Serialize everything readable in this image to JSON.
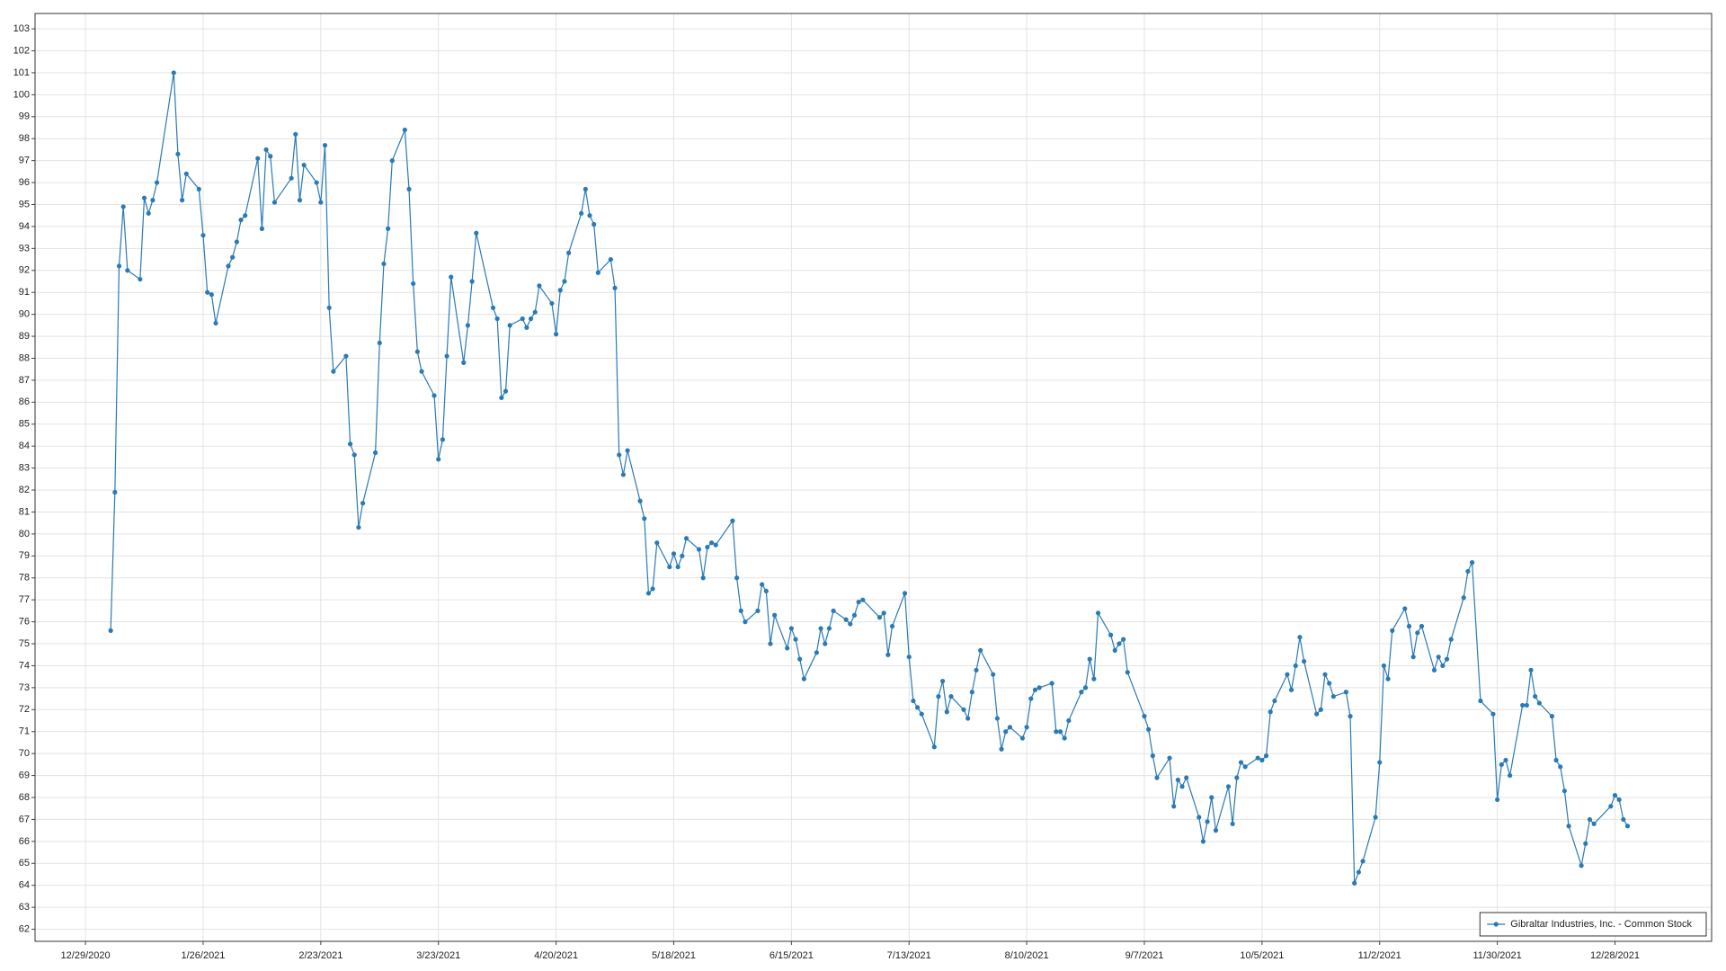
{
  "chart_data": {
    "type": "line",
    "series": [
      {
        "name": "Gibraltar Industries, Inc. - Common Stock",
        "color": "#2a7ab5",
        "values": [
          75.6,
          81.9,
          92.2,
          94.9,
          92.0,
          91.6,
          95.3,
          94.6,
          95.2,
          96.0,
          101.0,
          97.3,
          95.2,
          96.4,
          95.7,
          93.6,
          91.0,
          90.9,
          89.6,
          92.2,
          92.6,
          93.3,
          94.3,
          94.5,
          97.1,
          93.9,
          97.5,
          97.2,
          95.1,
          96.2,
          98.2,
          95.2,
          96.8,
          96.0,
          95.1,
          97.7,
          90.3,
          87.4,
          88.1,
          84.1,
          83.6,
          80.3,
          81.4,
          83.7,
          88.7,
          92.3,
          93.9,
          97.0,
          98.4,
          95.7,
          91.4,
          88.3,
          87.4,
          86.3,
          83.4,
          84.3,
          88.1,
          91.7,
          87.8,
          89.5,
          91.5,
          93.7,
          90.3,
          89.8,
          86.2,
          86.5,
          89.5,
          89.8,
          89.4,
          89.8,
          90.1,
          91.3,
          90.5,
          89.1,
          91.1,
          91.5,
          92.8,
          94.6,
          95.7,
          94.5,
          94.1,
          91.9,
          92.5,
          91.2,
          83.6,
          82.7,
          83.8,
          81.5,
          80.7,
          77.3,
          77.5,
          79.6,
          78.5,
          79.1,
          78.5,
          79.0,
          79.8,
          79.3,
          78.0,
          79.4,
          79.6,
          79.5,
          80.6,
          78.0,
          76.5,
          76.0,
          76.5,
          77.7,
          77.4,
          75.0,
          76.3,
          74.8,
          75.7,
          75.2,
          74.3,
          73.4,
          74.6,
          75.7,
          75.0,
          75.7,
          76.5,
          76.1,
          75.9,
          76.3,
          76.9,
          77.0,
          76.2,
          76.4,
          74.5,
          75.8,
          77.3,
          74.4,
          72.4,
          72.1,
          71.8,
          70.3,
          72.6,
          73.3,
          71.9,
          72.6,
          72.0,
          71.6,
          72.8,
          73.8,
          74.7,
          73.6,
          71.6,
          70.2,
          71.0,
          71.2,
          70.7,
          71.2,
          72.5,
          72.9,
          73.0,
          73.2,
          71.0,
          71.0,
          70.7,
          71.5,
          72.8,
          73.0,
          74.3,
          73.4,
          76.4,
          75.4,
          74.7,
          75.0,
          75.2,
          73.7,
          71.7,
          71.1,
          69.9,
          68.9,
          69.8,
          67.6,
          68.8,
          68.5,
          68.9,
          67.1,
          66.0,
          66.9,
          68.0,
          66.5,
          68.5,
          66.8,
          68.9,
          69.6,
          69.4,
          69.8,
          69.7,
          69.9,
          71.9,
          72.4,
          73.6,
          72.9,
          74.0,
          75.3,
          74.2,
          71.8,
          72.0,
          73.6,
          73.2,
          72.6,
          72.8,
          71.7,
          64.1,
          64.6,
          65.1,
          67.1,
          69.6,
          74.0,
          73.4,
          75.6,
          76.6,
          75.8,
          74.4,
          75.5,
          75.8,
          73.8,
          74.4,
          74.0,
          74.3,
          75.2,
          77.1,
          78.3,
          78.7,
          72.4,
          71.8,
          67.9,
          69.5,
          69.7,
          69.0,
          72.2,
          72.2,
          73.8,
          72.6,
          72.3,
          71.7,
          69.7,
          69.4,
          68.3,
          66.7,
          64.9,
          65.9,
          67.0,
          66.8,
          67.6,
          68.1,
          67.9,
          67.0,
          66.7
        ]
      }
    ],
    "x": [
      "1/4/2021",
      "1/5/2021",
      "1/6/2021",
      "1/7/2021",
      "1/8/2021",
      "1/11/2021",
      "1/12/2021",
      "1/13/2021",
      "1/14/2021",
      "1/15/2021",
      "1/19/2021",
      "1/20/2021",
      "1/21/2021",
      "1/22/2021",
      "1/25/2021",
      "1/26/2021",
      "1/27/2021",
      "1/28/2021",
      "1/29/2021",
      "2/1/2021",
      "2/2/2021",
      "2/3/2021",
      "2/4/2021",
      "2/5/2021",
      "2/8/2021",
      "2/9/2021",
      "2/10/2021",
      "2/11/2021",
      "2/12/2021",
      "2/16/2021",
      "2/17/2021",
      "2/18/2021",
      "2/19/2021",
      "2/22/2021",
      "2/23/2021",
      "2/24/2021",
      "2/25/2021",
      "2/26/2021",
      "3/1/2021",
      "3/2/2021",
      "3/3/2021",
      "3/4/2021",
      "3/5/2021",
      "3/8/2021",
      "3/9/2021",
      "3/10/2021",
      "3/11/2021",
      "3/12/2021",
      "3/15/2021",
      "3/16/2021",
      "3/17/2021",
      "3/18/2021",
      "3/19/2021",
      "3/22/2021",
      "3/23/2021",
      "3/24/2021",
      "3/25/2021",
      "3/26/2021",
      "3/29/2021",
      "3/30/2021",
      "3/31/2021",
      "4/1/2021",
      "4/5/2021",
      "4/6/2021",
      "4/7/2021",
      "4/8/2021",
      "4/9/2021",
      "4/12/2021",
      "4/13/2021",
      "4/14/2021",
      "4/15/2021",
      "4/16/2021",
      "4/19/2021",
      "4/20/2021",
      "4/21/2021",
      "4/22/2021",
      "4/23/2021",
      "4/26/2021",
      "4/27/2021",
      "4/28/2021",
      "4/29/2021",
      "4/30/2021",
      "5/3/2021",
      "5/4/2021",
      "5/5/2021",
      "5/6/2021",
      "5/7/2021",
      "5/10/2021",
      "5/11/2021",
      "5/12/2021",
      "5/13/2021",
      "5/14/2021",
      "5/17/2021",
      "5/18/2021",
      "5/19/2021",
      "5/20/2021",
      "5/21/2021",
      "5/24/2021",
      "5/25/2021",
      "5/26/2021",
      "5/27/2021",
      "5/28/2021",
      "6/1/2021",
      "6/2/2021",
      "6/3/2021",
      "6/4/2021",
      "6/7/2021",
      "6/8/2021",
      "6/9/2021",
      "6/10/2021",
      "6/11/2021",
      "6/14/2021",
      "6/15/2021",
      "6/16/2021",
      "6/17/2021",
      "6/18/2021",
      "6/21/2021",
      "6/22/2021",
      "6/23/2021",
      "6/24/2021",
      "6/25/2021",
      "6/28/2021",
      "6/29/2021",
      "6/30/2021",
      "7/1/2021",
      "7/2/2021",
      "7/6/2021",
      "7/7/2021",
      "7/8/2021",
      "7/9/2021",
      "7/12/2021",
      "7/13/2021",
      "7/14/2021",
      "7/15/2021",
      "7/16/2021",
      "7/19/2021",
      "7/20/2021",
      "7/21/2021",
      "7/22/2021",
      "7/23/2021",
      "7/26/2021",
      "7/27/2021",
      "7/28/2021",
      "7/29/2021",
      "7/30/2021",
      "8/2/2021",
      "8/3/2021",
      "8/4/2021",
      "8/5/2021",
      "8/6/2021",
      "8/9/2021",
      "8/10/2021",
      "8/11/2021",
      "8/12/2021",
      "8/13/2021",
      "8/16/2021",
      "8/17/2021",
      "8/18/2021",
      "8/19/2021",
      "8/20/2021",
      "8/23/2021",
      "8/24/2021",
      "8/25/2021",
      "8/26/2021",
      "8/27/2021",
      "8/30/2021",
      "8/31/2021",
      "9/1/2021",
      "9/2/2021",
      "9/3/2021",
      "9/7/2021",
      "9/8/2021",
      "9/9/2021",
      "9/10/2021",
      "9/13/2021",
      "9/14/2021",
      "9/15/2021",
      "9/16/2021",
      "9/17/2021",
      "9/20/2021",
      "9/21/2021",
      "9/22/2021",
      "9/23/2021",
      "9/24/2021",
      "9/27/2021",
      "9/28/2021",
      "9/29/2021",
      "9/30/2021",
      "10/1/2021",
      "10/4/2021",
      "10/5/2021",
      "10/6/2021",
      "10/7/2021",
      "10/8/2021",
      "10/11/2021",
      "10/12/2021",
      "10/13/2021",
      "10/14/2021",
      "10/15/2021",
      "10/18/2021",
      "10/19/2021",
      "10/20/2021",
      "10/21/2021",
      "10/22/2021",
      "10/25/2021",
      "10/26/2021",
      "10/27/2021",
      "10/28/2021",
      "10/29/2021",
      "11/1/2021",
      "11/2/2021",
      "11/3/2021",
      "11/4/2021",
      "11/5/2021",
      "11/8/2021",
      "11/9/2021",
      "11/10/2021",
      "11/11/2021",
      "11/12/2021",
      "11/15/2021",
      "11/16/2021",
      "11/17/2021",
      "11/18/2021",
      "11/19/2021",
      "11/22/2021",
      "11/23/2021",
      "11/24/2021",
      "11/26/2021",
      "11/29/2021",
      "11/30/2021",
      "12/1/2021",
      "12/2/2021",
      "12/3/2021",
      "12/6/2021",
      "12/7/2021",
      "12/8/2021",
      "12/9/2021",
      "12/10/2021",
      "12/13/2021",
      "12/14/2021",
      "12/15/2021",
      "12/16/2021",
      "12/17/2021",
      "12/20/2021",
      "12/21/2021",
      "12/22/2021",
      "12/23/2021",
      "12/27/2021",
      "12/28/2021",
      "12/29/2021",
      "12/30/2021",
      "12/31/2021"
    ],
    "xlim": [
      "12/17/2020",
      "1/20/2022"
    ],
    "xticks": [
      "12/29/2020",
      "1/26/2021",
      "2/23/2021",
      "3/23/2021",
      "4/20/2021",
      "5/18/2021",
      "6/15/2021",
      "7/13/2021",
      "8/10/2021",
      "9/7/2021",
      "10/5/2021",
      "11/2/2021",
      "11/30/2021",
      "12/28/2021"
    ],
    "ylim": [
      61.45,
      103.7
    ],
    "yticks": [
      62,
      63,
      64,
      65,
      66,
      67,
      68,
      69,
      70,
      71,
      72,
      73,
      74,
      75,
      76,
      77,
      78,
      79,
      80,
      81,
      82,
      83,
      84,
      85,
      86,
      87,
      88,
      89,
      90,
      91,
      92,
      93,
      94,
      95,
      96,
      97,
      98,
      99,
      100,
      101,
      102,
      103
    ],
    "grid": true,
    "legend": "lower right"
  }
}
